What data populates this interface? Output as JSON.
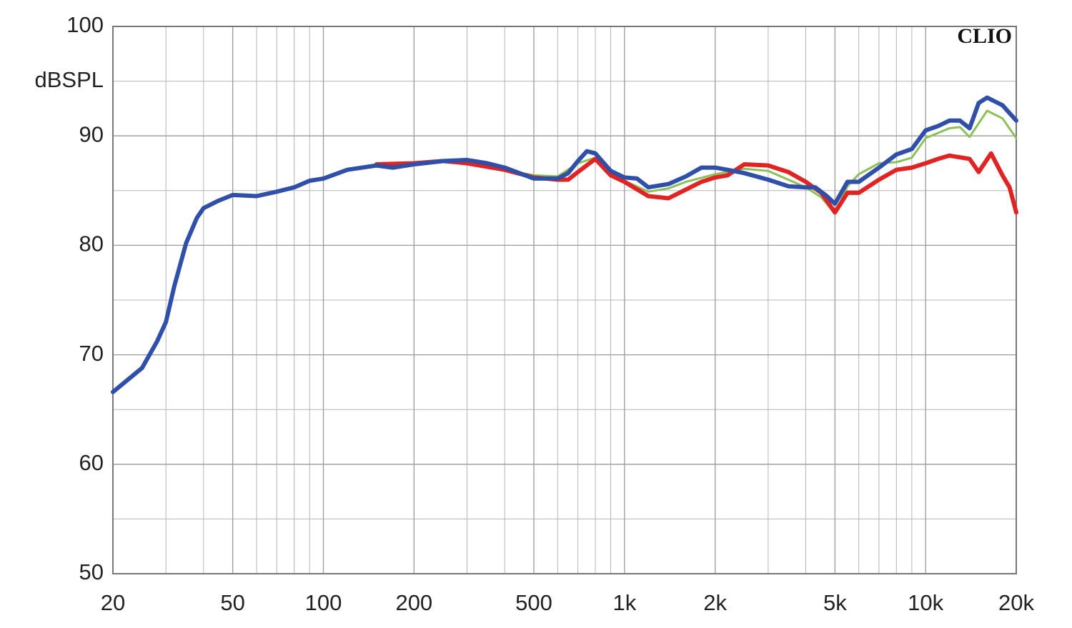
{
  "chart_data": {
    "type": "line",
    "y_label": "dBSPL",
    "watermark": "CLIO",
    "xscale": "log",
    "grid": true,
    "xlim": [
      20,
      20000
    ],
    "ylim": [
      50,
      100
    ],
    "xticks": [
      20,
      50,
      100,
      200,
      500,
      {
        "value": 1000,
        "label": "1k"
      },
      {
        "value": 2000,
        "label": "2k"
      },
      {
        "value": 5000,
        "label": "5k"
      },
      {
        "value": 10000,
        "label": "10k"
      },
      {
        "value": 20000,
        "label": "20k"
      }
    ],
    "yticks": [
      50,
      60,
      70,
      80,
      90,
      100
    ],
    "minor_xticks": [
      30,
      40,
      60,
      70,
      80,
      90,
      300,
      400,
      600,
      700,
      800,
      900,
      3000,
      4000,
      6000,
      7000,
      8000,
      9000
    ],
    "minor_yticks": [
      55,
      65,
      75,
      85,
      95
    ],
    "series": [
      {
        "color": "#8cc15a",
        "width": 3,
        "x": [
          150,
          200,
          250,
          300,
          400,
          500,
          600,
          700,
          800,
          900,
          1000,
          1200,
          1400,
          1600,
          2000,
          2500,
          3000,
          3500,
          4000,
          4500,
          5000,
          5500,
          6000,
          7000,
          8000,
          9000,
          10000,
          12000,
          13000,
          14000,
          16000,
          18000,
          20000
        ],
        "values": [
          87.3,
          87.4,
          87.7,
          87.8,
          86.9,
          86.4,
          86.3,
          87.5,
          88.0,
          86.5,
          85.9,
          84.9,
          85.2,
          85.8,
          86.5,
          87.0,
          86.8,
          86.0,
          85.3,
          84.4,
          82.9,
          85.4,
          86.5,
          87.5,
          87.6,
          88.0,
          89.8,
          90.7,
          90.8,
          89.9,
          92.3,
          91.6,
          89.8
        ]
      },
      {
        "color": "#e02424",
        "width": 6,
        "x": [
          150,
          200,
          250,
          300,
          400,
          500,
          600,
          650,
          700,
          800,
          900,
          1000,
          1200,
          1400,
          1600,
          1800,
          2000,
          2200,
          2500,
          3000,
          3500,
          4000,
          4500,
          5000,
          5500,
          6000,
          7000,
          8000,
          9000,
          10000,
          11000,
          12000,
          14000,
          15000,
          16500,
          18000,
          19000,
          20000
        ],
        "values": [
          87.4,
          87.5,
          87.7,
          87.5,
          86.9,
          86.2,
          86.0,
          86.0,
          86.7,
          87.9,
          86.4,
          85.8,
          84.5,
          84.3,
          85.1,
          85.8,
          86.2,
          86.4,
          87.4,
          87.3,
          86.7,
          85.8,
          84.8,
          83.0,
          84.8,
          84.8,
          86.0,
          86.9,
          87.1,
          87.5,
          87.9,
          88.2,
          87.9,
          86.7,
          88.4,
          86.4,
          85.3,
          83.0
        ]
      },
      {
        "color": "#2f4fa8",
        "width": 6,
        "x": [
          20,
          25,
          28,
          30,
          32,
          35,
          38,
          40,
          45,
          50,
          60,
          70,
          80,
          90,
          100,
          120,
          150,
          170,
          200,
          250,
          300,
          350,
          400,
          500,
          600,
          650,
          700,
          750,
          800,
          900,
          1000,
          1100,
          1200,
          1400,
          1600,
          1800,
          2000,
          2200,
          2500,
          3000,
          3500,
          4000,
          4300,
          4700,
          5000,
          5500,
          6000,
          7000,
          8000,
          9000,
          10000,
          11000,
          12000,
          13000,
          14000,
          15000,
          16000,
          18000,
          20000
        ],
        "values": [
          66.6,
          68.8,
          71.2,
          73.0,
          76.3,
          80.2,
          82.5,
          83.4,
          84.1,
          84.6,
          84.5,
          84.9,
          85.3,
          85.9,
          86.1,
          86.9,
          87.3,
          87.1,
          87.4,
          87.7,
          87.8,
          87.5,
          87.1,
          86.1,
          86.1,
          86.6,
          87.7,
          88.6,
          88.4,
          86.8,
          86.2,
          86.1,
          85.3,
          85.6,
          86.3,
          87.1,
          87.1,
          86.9,
          86.6,
          86.0,
          85.4,
          85.3,
          85.3,
          84.5,
          83.8,
          85.8,
          85.8,
          87.1,
          88.3,
          88.8,
          90.5,
          90.9,
          91.4,
          91.4,
          90.7,
          93.0,
          93.5,
          92.8,
          91.4
        ]
      }
    ]
  }
}
